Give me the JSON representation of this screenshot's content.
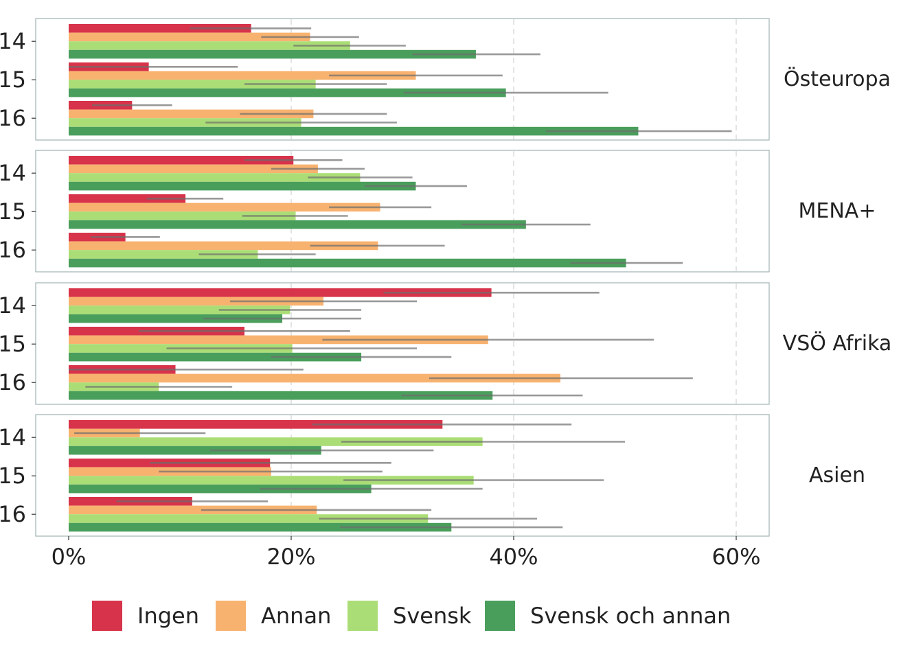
{
  "chart_data": {
    "type": "bar",
    "orientation": "horizontal",
    "title": "",
    "xlabel": "",
    "ylabel": "",
    "xlim": [
      0,
      0.63
    ],
    "x_ticks": [
      {
        "value": 0,
        "label": "0%"
      },
      {
        "value": 0.2,
        "label": "20%"
      },
      {
        "value": 0.4,
        "label": "40%"
      },
      {
        "value": 0.6,
        "label": "60%"
      }
    ],
    "grid": "vertical dashed",
    "legend_position": "bottom",
    "series": [
      {
        "name": "Ingen",
        "color": "#d7334a"
      },
      {
        "name": "Annan",
        "color": "#f8b26f"
      },
      {
        "name": "Svensk",
        "color": "#abdd76"
      },
      {
        "name": "Svensk och annan",
        "color": "#4a9e5c"
      }
    ],
    "panels": [
      {
        "label": "Östeuropa",
        "groups": [
          {
            "label": "14",
            "bars": [
              {
                "value": 0.164,
                "ci": [
                  0.109,
                  0.218
                ]
              },
              {
                "value": 0.217,
                "ci": [
                  0.173,
                  0.261
                ]
              },
              {
                "value": 0.253,
                "ci": [
                  0.202,
                  0.303
                ]
              },
              {
                "value": 0.366,
                "ci": [
                  0.309,
                  0.424
                ]
              }
            ]
          },
          {
            "label": "15",
            "bars": [
              {
                "value": 0.072,
                "ci": [
                  0.0,
                  0.152
                ]
              },
              {
                "value": 0.312,
                "ci": [
                  0.234,
                  0.39
                ]
              },
              {
                "value": 0.222,
                "ci": [
                  0.158,
                  0.286
                ]
              },
              {
                "value": 0.393,
                "ci": [
                  0.301,
                  0.485
                ]
              }
            ]
          },
          {
            "label": "16",
            "bars": [
              {
                "value": 0.057,
                "ci": [
                  0.021,
                  0.093
                ]
              },
              {
                "value": 0.22,
                "ci": [
                  0.154,
                  0.286
                ]
              },
              {
                "value": 0.209,
                "ci": [
                  0.123,
                  0.295
                ]
              },
              {
                "value": 0.512,
                "ci": [
                  0.429,
                  0.596
                ]
              }
            ]
          }
        ]
      },
      {
        "label": "MENA+",
        "groups": [
          {
            "label": "14",
            "bars": [
              {
                "value": 0.202,
                "ci": [
                  0.158,
                  0.246
                ]
              },
              {
                "value": 0.224,
                "ci": [
                  0.182,
                  0.266
                ]
              },
              {
                "value": 0.262,
                "ci": [
                  0.215,
                  0.309
                ]
              },
              {
                "value": 0.312,
                "ci": [
                  0.266,
                  0.358
                ]
              }
            ]
          },
          {
            "label": "15",
            "bars": [
              {
                "value": 0.105,
                "ci": [
                  0.07,
                  0.139
                ]
              },
              {
                "value": 0.28,
                "ci": [
                  0.234,
                  0.326
                ]
              },
              {
                "value": 0.204,
                "ci": [
                  0.156,
                  0.251
                ]
              },
              {
                "value": 0.411,
                "ci": [
                  0.353,
                  0.469
                ]
              }
            ]
          },
          {
            "label": "16",
            "bars": [
              {
                "value": 0.051,
                "ci": [
                  0.02,
                  0.082
                ]
              },
              {
                "value": 0.278,
                "ci": [
                  0.217,
                  0.338
                ]
              },
              {
                "value": 0.17,
                "ci": [
                  0.117,
                  0.222
                ]
              },
              {
                "value": 0.501,
                "ci": [
                  0.451,
                  0.552
                ]
              }
            ]
          }
        ]
      },
      {
        "label": "VSÖ Afrika",
        "groups": [
          {
            "label": "14",
            "bars": [
              {
                "value": 0.38,
                "ci": [
                  0.283,
                  0.477
                ]
              },
              {
                "value": 0.229,
                "ci": [
                  0.145,
                  0.313
                ]
              },
              {
                "value": 0.199,
                "ci": [
                  0.135,
                  0.263
                ]
              },
              {
                "value": 0.192,
                "ci": [
                  0.121,
                  0.263
                ]
              }
            ]
          },
          {
            "label": "15",
            "bars": [
              {
                "value": 0.158,
                "ci": [
                  0.063,
                  0.253
                ]
              },
              {
                "value": 0.377,
                "ci": [
                  0.228,
                  0.526
                ]
              },
              {
                "value": 0.201,
                "ci": [
                  0.088,
                  0.313
                ]
              },
              {
                "value": 0.263,
                "ci": [
                  0.182,
                  0.344
                ]
              }
            ]
          },
          {
            "label": "16",
            "bars": [
              {
                "value": 0.096,
                "ci": [
                  0.0,
                  0.211
                ]
              },
              {
                "value": 0.442,
                "ci": [
                  0.324,
                  0.561
                ]
              },
              {
                "value": 0.081,
                "ci": [
                  0.015,
                  0.147
                ]
              },
              {
                "value": 0.381,
                "ci": [
                  0.299,
                  0.462
                ]
              }
            ]
          }
        ]
      },
      {
        "label": "Asien",
        "groups": [
          {
            "label": "14",
            "bars": [
              {
                "value": 0.336,
                "ci": [
                  0.219,
                  0.452
                ]
              },
              {
                "value": 0.064,
                "ci": [
                  0.005,
                  0.123
                ]
              },
              {
                "value": 0.372,
                "ci": [
                  0.245,
                  0.5
                ]
              },
              {
                "value": 0.227,
                "ci": [
                  0.127,
                  0.328
                ]
              }
            ]
          },
          {
            "label": "15",
            "bars": [
              {
                "value": 0.181,
                "ci": [
                  0.073,
                  0.29
                ]
              },
              {
                "value": 0.182,
                "ci": [
                  0.081,
                  0.282
                ]
              },
              {
                "value": 0.364,
                "ci": [
                  0.247,
                  0.481
                ]
              },
              {
                "value": 0.272,
                "ci": [
                  0.172,
                  0.372
                ]
              }
            ]
          },
          {
            "label": "16",
            "bars": [
              {
                "value": 0.111,
                "ci": [
                  0.043,
                  0.179
                ]
              },
              {
                "value": 0.223,
                "ci": [
                  0.119,
                  0.326
                ]
              },
              {
                "value": 0.323,
                "ci": [
                  0.225,
                  0.421
                ]
              },
              {
                "value": 0.344,
                "ci": [
                  0.244,
                  0.444
                ]
              }
            ]
          }
        ]
      }
    ]
  }
}
